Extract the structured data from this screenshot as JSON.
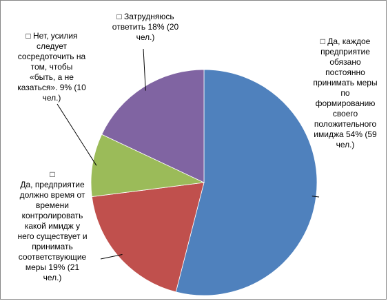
{
  "chart_data": {
    "type": "pie",
    "start": "top",
    "direction": "clockwise",
    "slices": [
      {
        "label": "□ Да, каждое\nпредприятие\nобязано\nпостоянно\nпринимать меры\nпо\nформированию\nсвоего\nположительного\nимиджа 54% (59\nчел.)",
        "value": 54,
        "count": 59,
        "color": "#4f81bd"
      },
      {
        "label": "□\nДа, предприятие\nдолжно время от\nвремени\nконтролировать\nкакой имидж у\nнего существует и\nпринимать\nсоответствующие\nмеры 19% (21\nчел.)",
        "value": 19,
        "count": 21,
        "color": "#c0504d"
      },
      {
        "label": "□ Нет, усилия\nследует\nсосредоточить на\nтом, чтобы\n«быть, а не\nказаться». 9% (10\nчел.)",
        "value": 9,
        "count": 10,
        "color": "#9bbb59"
      },
      {
        "label": "□ Затрудняюсь\nответить 18% (20\nчел.)",
        "value": 18,
        "count": 20,
        "color": "#8064a2"
      }
    ]
  }
}
